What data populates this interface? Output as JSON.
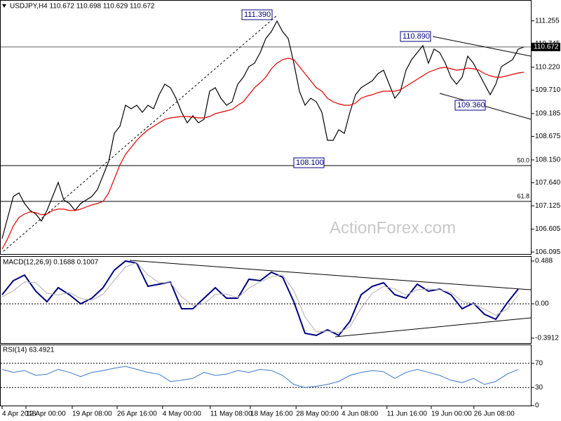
{
  "chart_data": [
    {
      "type": "line",
      "title": "USDJPY,H4  110.672 110.698 110.629 110.672",
      "watermark": "ActionForex.com",
      "xlim": [
        0,
        93
      ],
      "xticks": [
        {
          "value": 0,
          "label": "4 Apr 2018"
        },
        {
          "value": 4.25,
          "label": "12 Apr 00:00"
        },
        {
          "value": 12.5,
          "label": "19 Apr 08:00"
        },
        {
          "value": 20.5,
          "label": "26 Apr 16:00"
        },
        {
          "value": 28.6,
          "label": "4 May 00:00"
        },
        {
          "value": 37.1,
          "label": "11 May 08:00"
        },
        {
          "value": 44.25,
          "label": "18 May 16:00"
        },
        {
          "value": 52.4,
          "label": "28 May 00:00"
        },
        {
          "value": 60.5,
          "label": "4 Jun 08:00"
        },
        {
          "value": 68.6,
          "label": "11 Jun 16:00"
        },
        {
          "value": 76.5,
          "label": "19 Jun 00:00"
        },
        {
          "value": 84.1,
          "label": "26 Jun 08:00"
        }
      ],
      "ylim": [
        106.05,
        111.72
      ],
      "yticks": [
        111.255,
        110.745,
        {
          "value": 110.22,
          "label": "110.220"
        },
        {
          "value": 109.71,
          "label": "109.710"
        },
        109.185,
        108.675,
        {
          "value": 108.15,
          "label": "108.150"
        },
        {
          "value": 107.64,
          "label": "107.640"
        },
        107.125,
        106.605,
        106.095
      ],
      "last": 110.672,
      "levels": [
        {
          "label": "50.0",
          "value": 108.024
        },
        {
          "label": "61.8",
          "value": 107.225
        }
      ],
      "annotations": [
        "111.390",
        "110.890",
        "109.360",
        "108.100"
      ],
      "series": [
        {
          "color": "#000000",
          "values": [
            106.395,
            106.864,
            107.334,
            107.413,
            107.178,
            107.021,
            106.943,
            106.786,
            107.021,
            107.334,
            107.648,
            107.256,
            107.178,
            107.021,
            107.178,
            107.256,
            107.334,
            107.491,
            107.804,
            108.118,
            108.744,
            108.901,
            109.371,
            109.292,
            109.371,
            109.214,
            109.371,
            109.292,
            109.605,
            109.84,
            109.762,
            109.527,
            109.214,
            108.979,
            109.136,
            108.979,
            109.057,
            109.684,
            109.762,
            109.527,
            109.371,
            109.449,
            109.84,
            109.997,
            110.232,
            110.31,
            110.545,
            110.859,
            111.015,
            111.25,
            111.015,
            110.859,
            110.31,
            109.684,
            109.371,
            109.527,
            109.449,
            109.214,
            108.587,
            108.587,
            108.822,
            108.744,
            109.214,
            109.605,
            109.762,
            109.84,
            109.919,
            110.075,
            110.154,
            109.84,
            109.527,
            109.684,
            110.154,
            110.389,
            110.545,
            110.702,
            110.31,
            110.624,
            110.545,
            110.31,
            109.997,
            109.84,
            109.997,
            110.467,
            110.31,
            110.075,
            109.84,
            109.605,
            109.84,
            110.232,
            110.31,
            110.389,
            110.624,
            110.671
          ]
        },
        {
          "color": "#e00000",
          "values": [
            106.16,
            106.395,
            106.677,
            106.864,
            106.943,
            106.99,
            106.974,
            106.927,
            106.943,
            107.021,
            107.052,
            107.052,
            107.021,
            107.021,
            107.052,
            107.099,
            107.146,
            107.178,
            107.225,
            107.413,
            107.726,
            108.039,
            108.274,
            108.431,
            108.587,
            108.713,
            108.822,
            108.901,
            108.979,
            109.057,
            109.089,
            109.104,
            109.12,
            109.12,
            109.104,
            109.089,
            109.089,
            109.12,
            109.183,
            109.214,
            109.245,
            109.277,
            109.371,
            109.449,
            109.605,
            109.762,
            109.872,
            109.997,
            110.185,
            110.31,
            110.389,
            110.42,
            110.389,
            110.232,
            110.075,
            109.919,
            109.762,
            109.684,
            109.527,
            109.449,
            109.402,
            109.371,
            109.371,
            109.418,
            109.527,
            109.574,
            109.605,
            109.652,
            109.684,
            109.684,
            109.684,
            109.715,
            109.793,
            109.872,
            109.95,
            110.028,
            110.107,
            110.154,
            110.201,
            110.216,
            110.185,
            110.154,
            110.169,
            110.201,
            110.185,
            110.154,
            110.075,
            110.028,
            109.997,
            109.997,
            110.028,
            110.06,
            110.091,
            110.107
          ]
        }
      ]
    },
    {
      "type": "line",
      "title": "MACD(12,26,9) 0.1688 0.1007",
      "xlim": [
        0,
        46.5
      ],
      "ylim": [
        -0.456,
        0.536
      ],
      "yticks": [
        0.488,
        {
          "value": 0,
          "label": "0.00"
        },
        -0.3912
      ],
      "zero": 0,
      "series": [
        {
          "color": "#000080",
          "width": 2,
          "values": [
            0.104,
            0.264,
            0.328,
            0.144,
            0.024,
            0.184,
            0.104,
            0,
            0.064,
            0.184,
            0.384,
            0.488,
            0.464,
            0.2,
            0.224,
            0.248,
            -0.056,
            -0.056,
            0.064,
            0.184,
            0.064,
            0.064,
            0.28,
            0.264,
            0.36,
            0.304,
            0.024,
            -0.336,
            -0.36,
            -0.296,
            -0.36,
            -0.2,
            0.104,
            0.2,
            0.24,
            0.104,
            0.064,
            0.224,
            0.144,
            0.168,
            0.104,
            -0.056,
            0.008,
            -0.12,
            -0.176,
            0.008,
            0.168
          ]
        },
        {
          "color": "#b0b0b0",
          "width": 1,
          "values": [
            0.08,
            0.15,
            0.25,
            0.24,
            0.12,
            0.1,
            0.13,
            0.06,
            0.04,
            0.11,
            0.27,
            0.42,
            0.47,
            0.33,
            0.24,
            0.24,
            0.08,
            -0.02,
            0.0,
            0.11,
            0.11,
            0.07,
            0.18,
            0.25,
            0.31,
            0.33,
            0.15,
            -0.15,
            -0.32,
            -0.31,
            -0.33,
            -0.26,
            -0.05,
            0.12,
            0.2,
            0.17,
            0.1,
            0.16,
            0.17,
            0.16,
            0.13,
            0.03,
            0.0,
            -0.06,
            -0.13,
            -0.06,
            0.1
          ]
        }
      ]
    },
    {
      "type": "line",
      "title": "RSI(14) 63.4921",
      "xlim": [
        0,
        46.5
      ],
      "ylim": [
        0,
        100
      ],
      "yticks": [
        70,
        30,
        0
      ],
      "levels": [
        70,
        30
      ],
      "series": [
        {
          "color": "#3a78c8",
          "width": 1,
          "values": [
            60,
            55,
            58,
            50,
            52,
            60,
            55,
            48,
            55,
            58,
            62,
            65,
            60,
            55,
            52,
            40,
            42,
            45,
            55,
            50,
            52,
            58,
            55,
            60,
            58,
            50,
            35,
            30,
            32,
            35,
            40,
            50,
            55,
            58,
            56,
            45,
            55,
            60,
            55,
            50,
            42,
            38,
            45,
            35,
            40,
            52,
            60
          ]
        }
      ]
    }
  ]
}
